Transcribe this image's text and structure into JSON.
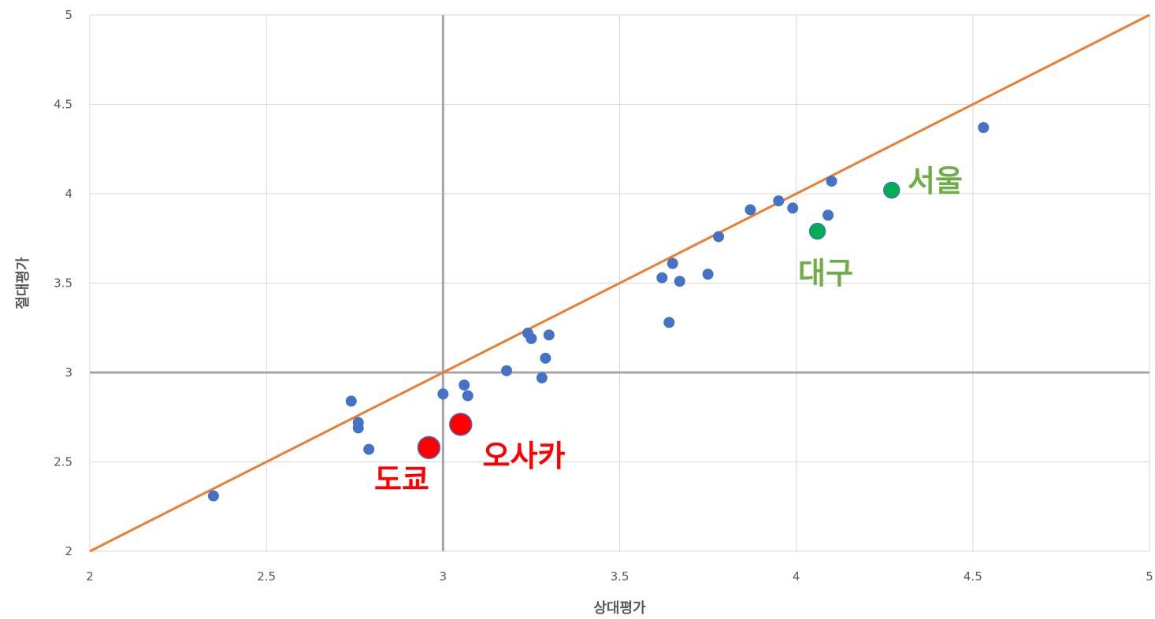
{
  "chart_data": {
    "type": "scatter",
    "title": "",
    "xlabel": "상대평가",
    "ylabel": "절대평가",
    "xlim": [
      2,
      5
    ],
    "ylim": [
      2,
      5
    ],
    "x_ticks": [
      "2",
      "2.5",
      "3",
      "3.5",
      "4",
      "4.5",
      "5"
    ],
    "y_ticks": [
      "2",
      "2.5",
      "3",
      "3.5",
      "4",
      "4.5",
      "5"
    ],
    "grid": true,
    "legend": "none",
    "reference_lines": [
      {
        "orientation": "vertical",
        "value": 3,
        "color": "#a6a6a6"
      },
      {
        "orientation": "horizontal",
        "value": 3,
        "color": "#a6a6a6"
      }
    ],
    "diagonal_line": {
      "from": [
        2,
        2
      ],
      "to": [
        5,
        5
      ],
      "color": "#ed7d31"
    },
    "series": [
      {
        "color": "#4472c4",
        "points": [
          {
            "x": 2.35,
            "y": 2.31
          },
          {
            "x": 2.74,
            "y": 2.84
          },
          {
            "x": 2.76,
            "y": 2.72
          },
          {
            "x": 2.76,
            "y": 2.69
          },
          {
            "x": 2.79,
            "y": 2.57
          },
          {
            "x": 3.0,
            "y": 2.88
          },
          {
            "x": 3.06,
            "y": 2.93
          },
          {
            "x": 3.07,
            "y": 2.87
          },
          {
            "x": 3.18,
            "y": 3.01
          },
          {
            "x": 3.24,
            "y": 3.22
          },
          {
            "x": 3.25,
            "y": 3.19
          },
          {
            "x": 3.28,
            "y": 2.97
          },
          {
            "x": 3.29,
            "y": 3.08
          },
          {
            "x": 3.3,
            "y": 3.21
          },
          {
            "x": 3.62,
            "y": 3.53
          },
          {
            "x": 3.64,
            "y": 3.28
          },
          {
            "x": 3.65,
            "y": 3.61
          },
          {
            "x": 3.67,
            "y": 3.51
          },
          {
            "x": 3.75,
            "y": 3.55
          },
          {
            "x": 3.78,
            "y": 3.76
          },
          {
            "x": 3.87,
            "y": 3.91
          },
          {
            "x": 3.95,
            "y": 3.96
          },
          {
            "x": 3.99,
            "y": 3.92
          },
          {
            "x": 4.09,
            "y": 3.88
          },
          {
            "x": 4.1,
            "y": 4.07
          },
          {
            "x": 4.53,
            "y": 4.37
          }
        ]
      },
      {
        "color": "#00b050",
        "points": [
          {
            "x": 4.27,
            "y": 4.02,
            "label": "서울"
          },
          {
            "x": 4.06,
            "y": 3.79,
            "label": "대구"
          }
        ]
      },
      {
        "color": "#ff0000",
        "points": [
          {
            "x": 2.96,
            "y": 2.58,
            "label": "도쿄"
          },
          {
            "x": 3.05,
            "y": 2.71,
            "label": "오사카"
          }
        ]
      }
    ],
    "annotations": [
      {
        "text": "서울",
        "color": "#70ad47"
      },
      {
        "text": "대구",
        "color": "#70ad47"
      },
      {
        "text": "도쿄",
        "color": "#ff0000"
      },
      {
        "text": "오사카",
        "color": "#ff0000"
      }
    ]
  }
}
